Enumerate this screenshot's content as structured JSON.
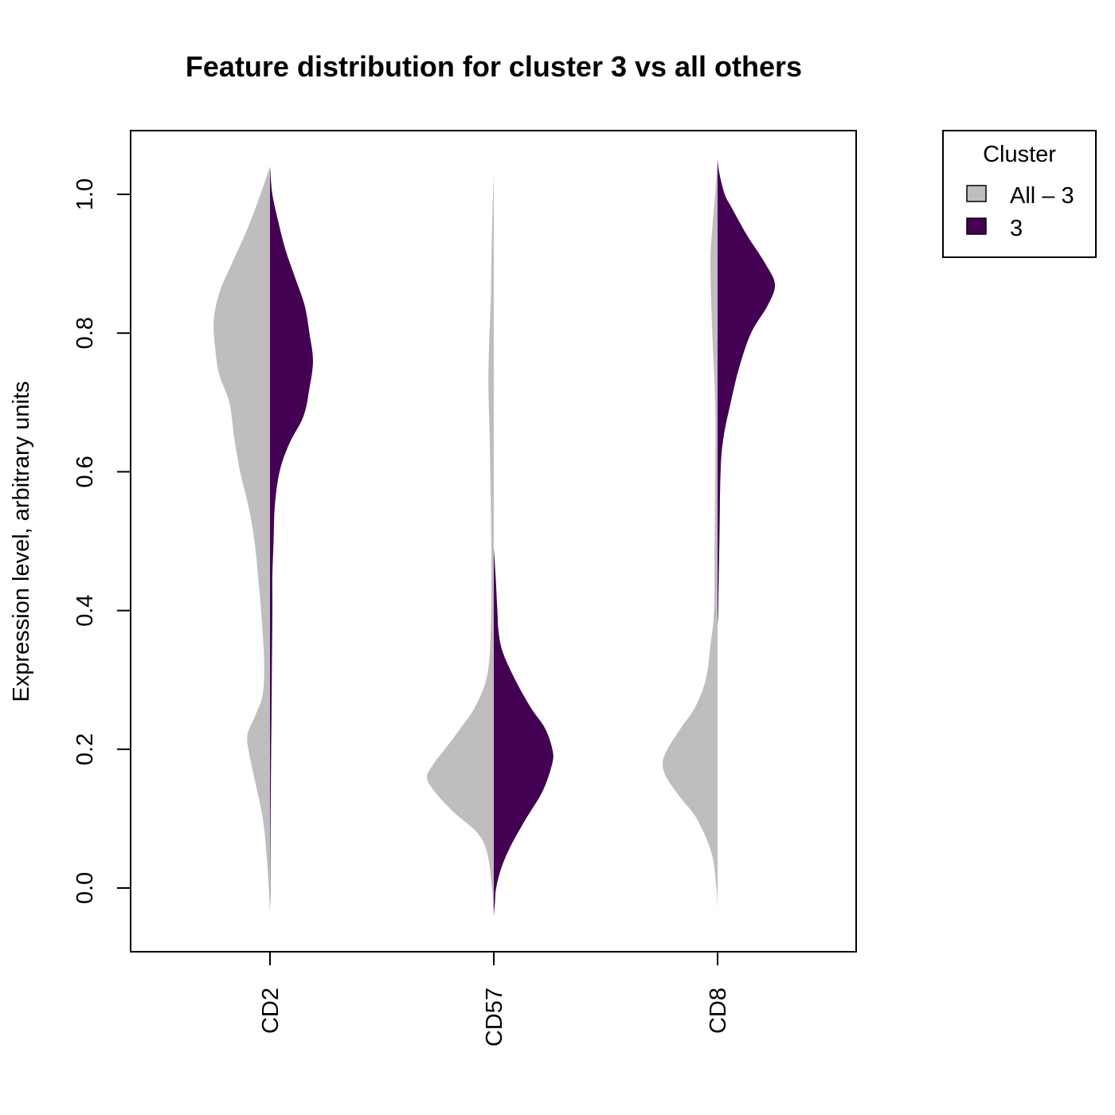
{
  "chart_data": {
    "type": "split-violin",
    "title": "Feature distribution for cluster 3 vs all others",
    "ylabel": "Expression level, arbitrary units",
    "xlabel": "",
    "ylim": [
      -0.09,
      1.095
    ],
    "yticks": [
      0.0,
      0.2,
      0.4,
      0.6,
      0.8,
      1.0
    ],
    "ytick_labels": [
      "0.0",
      "0.2",
      "0.4",
      "0.6",
      "0.8",
      "1.0"
    ],
    "categories": [
      "CD2",
      "CD57",
      "CD8"
    ],
    "legend": {
      "title": "Cluster",
      "position": "right",
      "entries": [
        {
          "label": "All – 3",
          "color": "#bebebe"
        },
        {
          "label": "3",
          "color": "#440154"
        }
      ]
    },
    "series": [
      {
        "name": "All – 3",
        "side": "left",
        "color": "#bebebe",
        "density": [
          {
            "category": "CD2",
            "profile": [
              [
                -0.04,
                0
              ],
              [
                0.0,
                0.2
              ],
              [
                0.05,
                0.6
              ],
              [
                0.1,
                1.2
              ],
              [
                0.15,
                2.4
              ],
              [
                0.19,
                3.4
              ],
              [
                0.22,
                3.8
              ],
              [
                0.25,
                2.4
              ],
              [
                0.28,
                1.2
              ],
              [
                0.33,
                1.0
              ],
              [
                0.4,
                1.5
              ],
              [
                0.45,
                2.0
              ],
              [
                0.5,
                2.6
              ],
              [
                0.55,
                3.6
              ],
              [
                0.6,
                5.0
              ],
              [
                0.65,
                6.0
              ],
              [
                0.7,
                6.8
              ],
              [
                0.74,
                8.5
              ],
              [
                0.78,
                9.2
              ],
              [
                0.82,
                9.4
              ],
              [
                0.86,
                8.4
              ],
              [
                0.9,
                6.4
              ],
              [
                0.95,
                3.8
              ],
              [
                1.0,
                1.6
              ],
              [
                1.04,
                0
              ]
            ]
          },
          {
            "category": "CD57",
            "profile": [
              [
                -0.04,
                0
              ],
              [
                0.0,
                0.3
              ],
              [
                0.05,
                1.1
              ],
              [
                0.08,
                2.8
              ],
              [
                0.11,
                6.8
              ],
              [
                0.14,
                10.0
              ],
              [
                0.16,
                11.2
              ],
              [
                0.18,
                10.0
              ],
              [
                0.2,
                8.2
              ],
              [
                0.23,
                5.6
              ],
              [
                0.26,
                3.2
              ],
              [
                0.3,
                1.3
              ],
              [
                0.35,
                0.6
              ],
              [
                0.45,
                0.4
              ],
              [
                0.55,
                0.5
              ],
              [
                0.65,
                0.7
              ],
              [
                0.72,
                0.9
              ],
              [
                0.78,
                0.8
              ],
              [
                0.85,
                0.5
              ],
              [
                0.95,
                0.3
              ],
              [
                1.03,
                0
              ]
            ]
          },
          {
            "category": "CD8",
            "profile": [
              [
                -0.03,
                0
              ],
              [
                0.0,
                0.2
              ],
              [
                0.05,
                1.0
              ],
              [
                0.1,
                3.5
              ],
              [
                0.13,
                6.2
              ],
              [
                0.16,
                8.6
              ],
              [
                0.18,
                9.2
              ],
              [
                0.2,
                8.4
              ],
              [
                0.23,
                6.2
              ],
              [
                0.26,
                3.8
              ],
              [
                0.3,
                2.0
              ],
              [
                0.35,
                1.2
              ],
              [
                0.4,
                0.6
              ],
              [
                0.5,
                0.5
              ],
              [
                0.6,
                0.4
              ],
              [
                0.7,
                0.4
              ],
              [
                0.8,
                0.9
              ],
              [
                0.9,
                1.2
              ],
              [
                0.95,
                0.9
              ],
              [
                1.0,
                0.4
              ],
              [
                1.05,
                0
              ]
            ]
          }
        ]
      },
      {
        "name": "3",
        "side": "right",
        "color": "#440154",
        "density": [
          {
            "category": "CD2",
            "profile": [
              [
                -0.03,
                0
              ],
              [
                0.0,
                0.05
              ],
              [
                0.1,
                0.1
              ],
              [
                0.2,
                0.2
              ],
              [
                0.3,
                0.3
              ],
              [
                0.4,
                0.4
              ],
              [
                0.45,
                0.4
              ],
              [
                0.5,
                0.6
              ],
              [
                0.55,
                0.8
              ],
              [
                0.6,
                1.6
              ],
              [
                0.64,
                3.2
              ],
              [
                0.68,
                5.6
              ],
              [
                0.72,
                6.6
              ],
              [
                0.76,
                7.2
              ],
              [
                0.8,
                6.6
              ],
              [
                0.84,
                5.8
              ],
              [
                0.88,
                4.2
              ],
              [
                0.92,
                2.6
              ],
              [
                0.96,
                1.4
              ],
              [
                1.0,
                0.4
              ],
              [
                1.04,
                0
              ]
            ]
          },
          {
            "category": "CD57",
            "profile": [
              [
                -0.04,
                0
              ],
              [
                -0.02,
                0.2
              ],
              [
                0.0,
                0.4
              ],
              [
                0.03,
                1.3
              ],
              [
                0.06,
                2.8
              ],
              [
                0.1,
                5.4
              ],
              [
                0.14,
                8.2
              ],
              [
                0.18,
                9.8
              ],
              [
                0.2,
                9.8
              ],
              [
                0.23,
                8.6
              ],
              [
                0.26,
                6.2
              ],
              [
                0.3,
                3.6
              ],
              [
                0.34,
                1.5
              ],
              [
                0.37,
                0.8
              ],
              [
                0.4,
                0.6
              ],
              [
                0.45,
                0.3
              ],
              [
                0.49,
                0
              ]
            ]
          },
          {
            "category": "CD8",
            "profile": [
              [
                0.38,
                0
              ],
              [
                0.4,
                0.1
              ],
              [
                0.5,
                0.3
              ],
              [
                0.6,
                0.5
              ],
              [
                0.65,
                1.0
              ],
              [
                0.7,
                2.2
              ],
              [
                0.75,
                3.6
              ],
              [
                0.8,
                5.6
              ],
              [
                0.84,
                8.4
              ],
              [
                0.87,
                9.6
              ],
              [
                0.9,
                8.0
              ],
              [
                0.94,
                5.0
              ],
              [
                0.98,
                2.4
              ],
              [
                1.0,
                1.2
              ],
              [
                1.03,
                0.3
              ],
              [
                1.05,
                0
              ]
            ]
          }
        ]
      }
    ]
  }
}
